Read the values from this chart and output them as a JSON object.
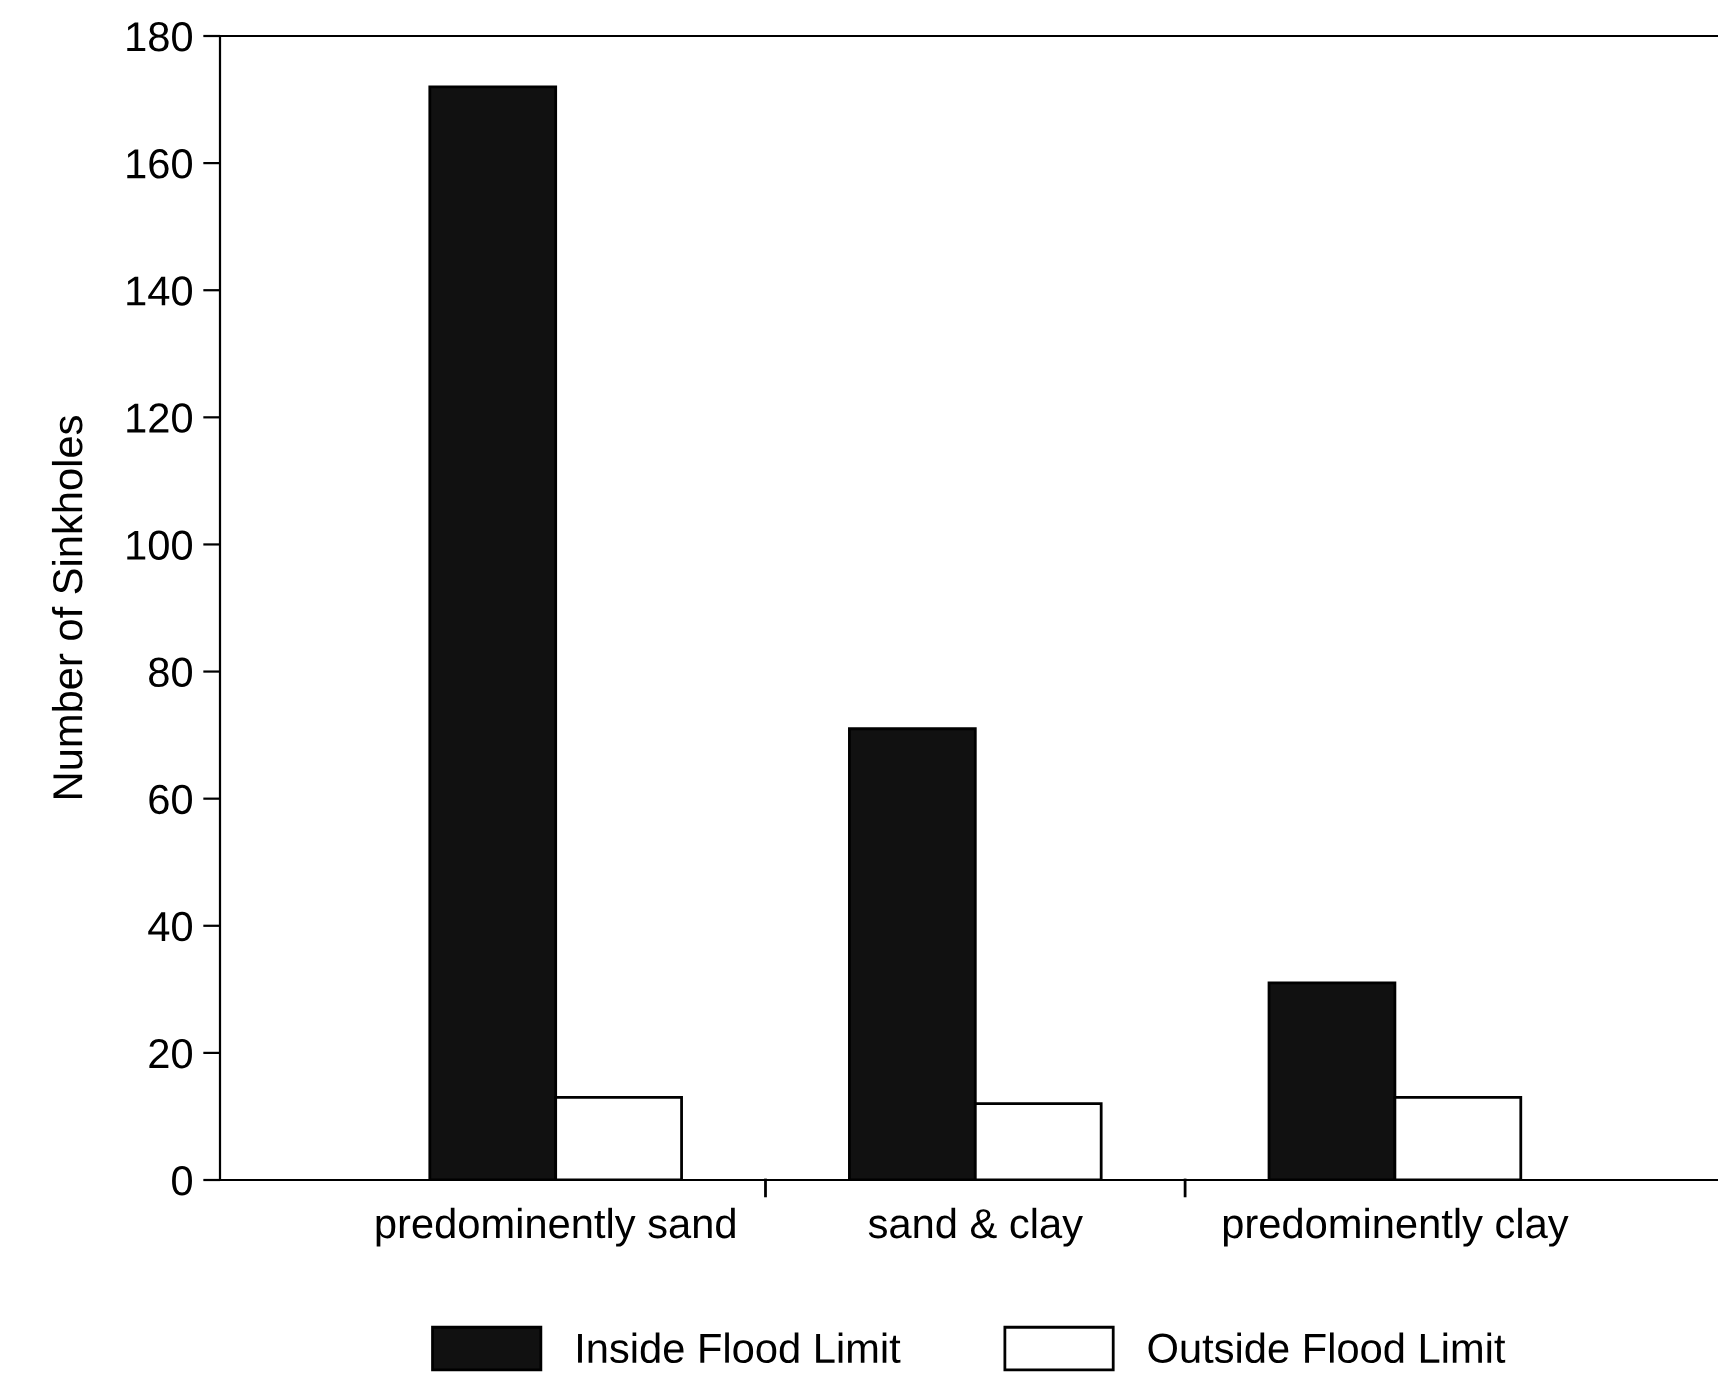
{
  "chart_data": {
    "type": "bar",
    "ylabel": "Number of Sinkholes",
    "categories": [
      "predominently sand",
      "sand & clay",
      "predominently clay"
    ],
    "series": [
      {
        "name": "Inside Flood Limit",
        "color": "#111111",
        "values": [
          172,
          71,
          31
        ]
      },
      {
        "name": "Outside Flood Limit",
        "color": "#ffffff",
        "values": [
          13,
          12,
          13
        ]
      }
    ],
    "ylim": [
      0,
      180
    ],
    "yticks": [
      0,
      20,
      40,
      60,
      80,
      100,
      120,
      140,
      160,
      180
    ],
    "legend": "bottom",
    "grid": false
  }
}
